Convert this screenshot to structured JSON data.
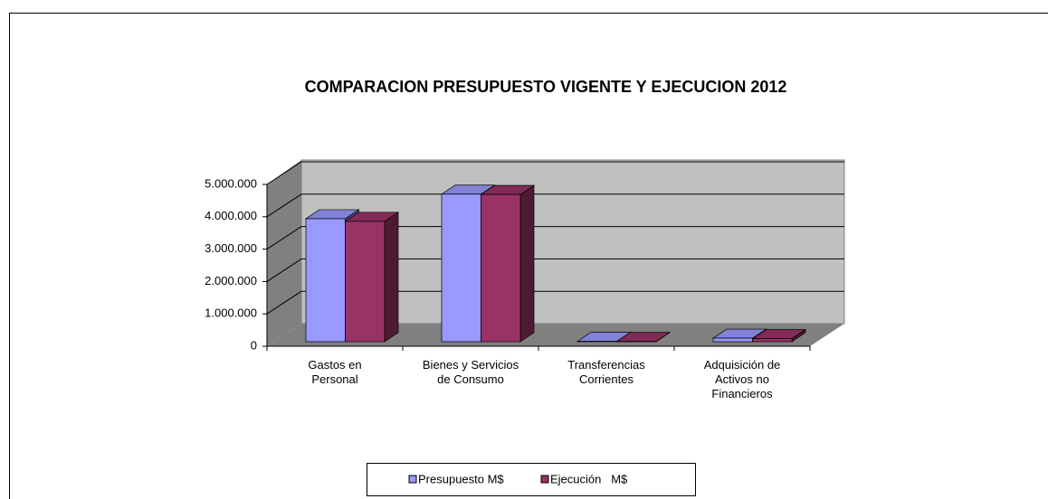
{
  "chart_data": {
    "type": "bar3d",
    "title": "COMPARACION PRESUPUESTO VIGENTE Y EJECUCION 2012",
    "categories": [
      "Gastos en\nPersonal",
      "Bienes y Servicios\nde Consumo",
      "Transferencias\nCorrientes",
      "Adquisición de\nActivos no\nFinancieros"
    ],
    "series": [
      {
        "name": "Presupuesto M$",
        "color": "#9999ff",
        "values": [
          3800000,
          4560000,
          10000,
          110000
        ]
      },
      {
        "name": "Ejecución   M$",
        "color": "#993366",
        "values": [
          3720000,
          4550000,
          8000,
          95000
        ]
      }
    ],
    "ylim": [
      0,
      5000000
    ],
    "yticks": [
      0,
      {
        "value": 1000000,
        "label": "1.000.000"
      },
      {
        "value": 2000000,
        "label": "2.000.000"
      },
      {
        "value": 3000000,
        "label": "3.000.000"
      },
      {
        "value": 4000000,
        "label": "4.000.000"
      },
      {
        "value": 5000000,
        "label": "5.000.000"
      }
    ],
    "grid": true,
    "legend": "bottom"
  }
}
